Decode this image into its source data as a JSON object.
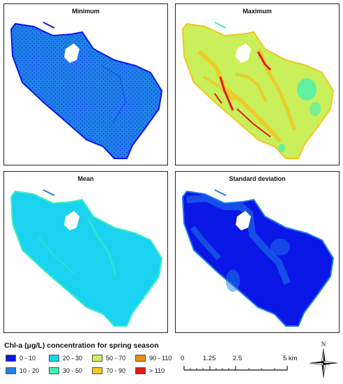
{
  "panels": {
    "min": {
      "title": "Minimum"
    },
    "max": {
      "title": "Maximum"
    },
    "mean": {
      "title": "Mean"
    },
    "sd": {
      "title": "Standard deviation"
    }
  },
  "legend": {
    "title": "Chl-a (μg/L) concentration for spring season",
    "items": [
      {
        "label": "0 - 10",
        "color": "#0a16e6"
      },
      {
        "label": "10 - 20",
        "color": "#1f7fe8"
      },
      {
        "label": "20 - 30",
        "color": "#1ad3f0"
      },
      {
        "label": "30 - 50",
        "color": "#3ef0b8"
      },
      {
        "label": "50 - 70",
        "color": "#c9ef5a"
      },
      {
        "label": "70 - 90",
        "color": "#f3c51e"
      },
      {
        "label": "90 - 110",
        "color": "#f08a12"
      },
      {
        "label": "> 110",
        "color": "#e41a10"
      }
    ]
  },
  "scale": {
    "labels": [
      "0",
      "1.25",
      "2.5",
      "5 km"
    ]
  },
  "north": {
    "label": "N"
  },
  "colors": {
    "lake_min": "#1f7fe8",
    "lake_max": "#c9ef5a",
    "lake_mean": "#1ad3f0",
    "lake_sd": "#0a16e6",
    "sd_secondary": "#1f7fe8",
    "max_warm": "#f3c51e",
    "max_hot": "#e41a10",
    "max_teal": "#3ef0b8"
  }
}
